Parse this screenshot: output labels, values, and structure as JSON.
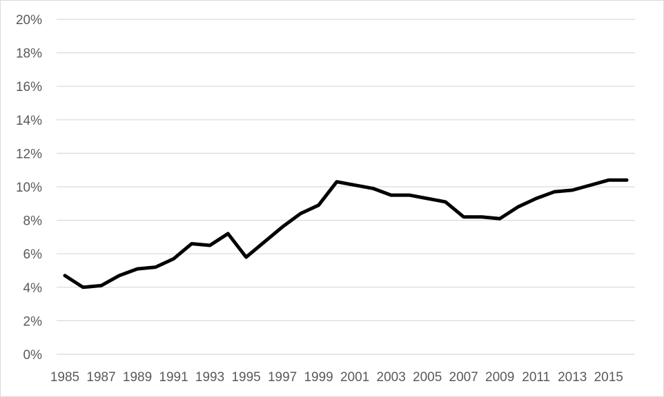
{
  "chart_data": {
    "type": "line",
    "title": "",
    "xlabel": "",
    "ylabel": "",
    "ylim": [
      0,
      0.2
    ],
    "y_ticks": [
      0,
      0.02,
      0.04,
      0.06,
      0.08,
      0.1,
      0.12,
      0.14,
      0.16,
      0.18,
      0.2
    ],
    "y_tick_labels": [
      "0%",
      "2%",
      "4%",
      "6%",
      "8%",
      "10%",
      "12%",
      "14%",
      "16%",
      "18%",
      "20%"
    ],
    "x_tick_labels": [
      "1985",
      "1987",
      "1989",
      "1991",
      "1993",
      "1995",
      "1997",
      "1999",
      "2001",
      "2003",
      "2005",
      "2007",
      "2009",
      "2011",
      "2013",
      "2015"
    ],
    "grid": true,
    "legend": "none",
    "x": [
      1985,
      1986,
      1987,
      1988,
      1989,
      1990,
      1991,
      1992,
      1993,
      1994,
      1995,
      1996,
      1997,
      1998,
      1999,
      2000,
      2001,
      2002,
      2003,
      2004,
      2005,
      2006,
      2007,
      2008,
      2009,
      2010,
      2011,
      2012,
      2013,
      2014,
      2015,
      2016
    ],
    "series": [
      {
        "values": [
          0.047,
          0.04,
          0.041,
          0.047,
          0.051,
          0.052,
          0.057,
          0.066,
          0.065,
          0.072,
          0.058,
          0.067,
          0.076,
          0.084,
          0.089,
          0.103,
          0.101,
          0.099,
          0.095,
          0.095,
          0.093,
          0.091,
          0.082,
          0.082,
          0.081,
          0.088,
          0.093,
          0.097,
          0.098,
          0.101,
          0.104,
          0.104
        ],
        "color": "#000000"
      }
    ],
    "gridline_color": "#d9d9d9",
    "tick_label_color": "#595959"
  }
}
